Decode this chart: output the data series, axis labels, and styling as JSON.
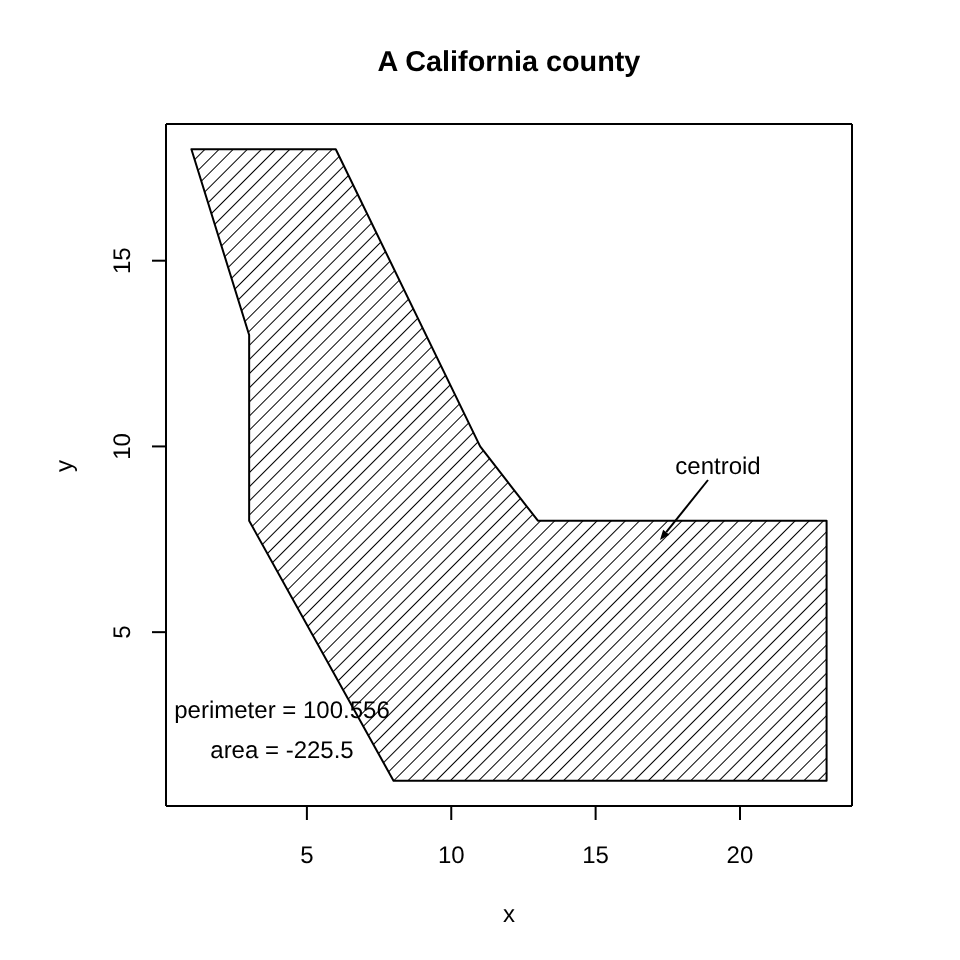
{
  "chart_data": {
    "type": "area",
    "title": "A California county",
    "xlabel": "x",
    "ylabel": "y",
    "x": [
      1,
      6,
      11,
      13,
      23,
      23,
      8,
      3,
      3
    ],
    "values": [
      18,
      18,
      10,
      8,
      8,
      1,
      1,
      8,
      13
    ],
    "color": "#000000",
    "xlim": [
      0.12,
      23.88
    ],
    "ylim": [
      0.32,
      18.68
    ],
    "xticks": [
      5,
      10,
      15,
      20
    ],
    "yticks": [
      5,
      10,
      15
    ],
    "annotations": [
      "centroid",
      "perimeter = 100.556",
      "area = -225.5"
    ]
  }
}
